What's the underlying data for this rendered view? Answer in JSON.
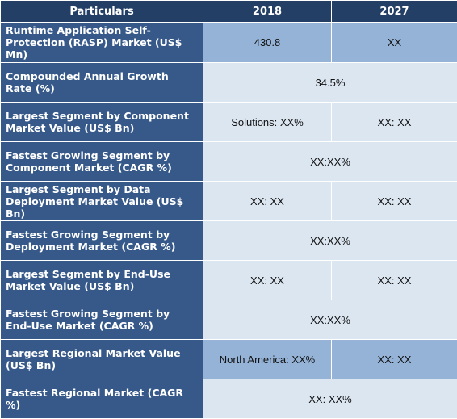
{
  "header": {
    "particulars": "Particulars",
    "year1": "2018",
    "year2": "2027"
  },
  "rows": [
    {
      "label": "Runtime Application Self-Protection (RASP) Market (US$ Mn)",
      "v2018": "430.8",
      "v2027": "XX"
    },
    {
      "label": "Compounded Annual Growth Rate (%)",
      "merged": "34.5%"
    },
    {
      "label": "Largest Segment by Component Market Value (US$ Bn)",
      "v2018": "Solutions: XX%",
      "v2027": "XX: XX"
    },
    {
      "label": "Fastest Growing Segment by Component Market (CAGR %)",
      "merged": "XX:XX%"
    },
    {
      "label": "Largest Segment by Data Deployment Market Value (US$ Bn)",
      "v2018": "XX: XX",
      "v2027": "XX: XX"
    },
    {
      "label": "Fastest Growing Segment by Deployment Market (CAGR %)",
      "merged": "XX:XX%"
    },
    {
      "label": "Largest Segment by End-Use Market Value (US$ Bn)",
      "v2018": "XX: XX",
      "v2027": "XX: XX"
    },
    {
      "label": "Fastest Growing Segment by End-Use Market (CAGR %)",
      "merged": "XX:XX%"
    },
    {
      "label": "Largest Regional Market Value (US$ Bn)",
      "v2018": "North America: XX%",
      "v2027": "XX: XX"
    },
    {
      "label": "Fastest Regional Market (CAGR %)",
      "merged": "XX: XX%"
    }
  ],
  "colors": {
    "header_bg": "#243f66",
    "label_bg": "#36598a",
    "cell_bg": "#dce6f1",
    "highlight_bg": "#95b3d7"
  }
}
